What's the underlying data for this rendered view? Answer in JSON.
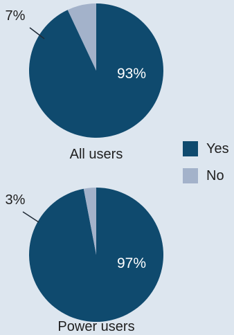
{
  "colors": {
    "background": "#dde6ef",
    "yes": "#0f4a6e",
    "no": "#a3b2ca",
    "leader": "#1f2a36"
  },
  "legend": {
    "items": [
      {
        "label": "Yes",
        "color": "#0f4a6e"
      },
      {
        "label": "No",
        "color": "#a3b2ca"
      }
    ]
  },
  "chart_data": [
    {
      "type": "pie",
      "title": "All users",
      "categories": [
        "Yes",
        "No"
      ],
      "values": [
        93,
        7
      ],
      "data_labels": [
        "93%",
        "7%"
      ]
    },
    {
      "type": "pie",
      "title": "Power users",
      "categories": [
        "Yes",
        "No"
      ],
      "values": [
        97,
        3
      ],
      "data_labels": [
        "97%",
        "3%"
      ]
    }
  ]
}
